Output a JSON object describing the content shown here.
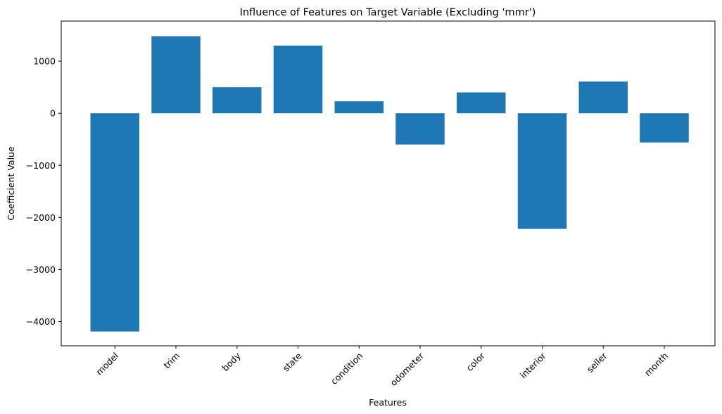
{
  "chart_data": {
    "type": "bar",
    "title": "Influence of Features on Target Variable (Excluding 'mmr')",
    "xlabel": "Features",
    "ylabel": "Coefficient Value",
    "categories": [
      "model",
      "trim",
      "body",
      "state",
      "condition",
      "odometer",
      "color",
      "interior",
      "seller",
      "month"
    ],
    "values": [
      -4190,
      1480,
      500,
      1300,
      230,
      -600,
      400,
      -2220,
      610,
      -560
    ],
    "ylim": [
      -4465,
      1770
    ],
    "yticks": [
      -4000,
      -3000,
      -2000,
      -1000,
      0,
      1000
    ],
    "ytick_labels": [
      "−4000",
      "−3000",
      "−2000",
      "−1000",
      "0",
      "1000"
    ],
    "grid": false,
    "bar_color": "#1f77b4",
    "tick_label_rotation_deg": 45
  }
}
